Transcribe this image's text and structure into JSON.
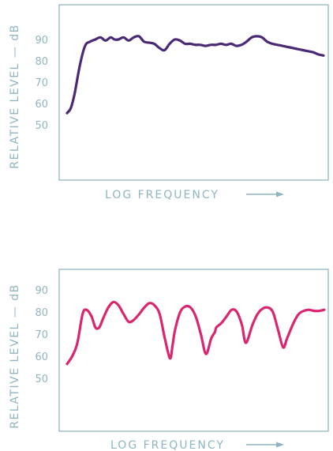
{
  "colors": {
    "axis": "#8fb6c0"
  },
  "chart_data": [
    {
      "type": "line",
      "ylabel": "RELATIVE LEVEL — dB",
      "xlabel": "LOG FREQUENCY",
      "yticks": [
        "50",
        "60",
        "70",
        "80",
        "90"
      ],
      "ylim": [
        50,
        90
      ],
      "series": [
        {
          "color": "#4a2a74",
          "x": [
            0.0,
            0.015,
            0.03,
            0.05,
            0.07,
            0.09,
            0.11,
            0.13,
            0.15,
            0.17,
            0.185,
            0.2,
            0.22,
            0.24,
            0.26,
            0.28,
            0.3,
            0.32,
            0.34,
            0.36,
            0.38,
            0.4,
            0.42,
            0.44,
            0.46,
            0.48,
            0.5,
            0.52,
            0.54,
            0.56,
            0.58,
            0.6,
            0.62,
            0.64,
            0.66,
            0.68,
            0.7,
            0.72,
            0.74,
            0.76,
            0.78,
            0.8,
            0.82,
            0.84,
            0.86,
            0.88,
            0.9,
            0.92,
            0.94,
            0.96,
            0.98,
            1.0
          ],
          "y": [
            55.5,
            58,
            65,
            78,
            87,
            89,
            90,
            91,
            89.5,
            91,
            90,
            90,
            91,
            89.5,
            91,
            91.5,
            89,
            88.5,
            88,
            86,
            85,
            88,
            90,
            89.5,
            88,
            88,
            87.5,
            87.5,
            87,
            87.5,
            87.5,
            88,
            87.5,
            88,
            87,
            87.5,
            89,
            91,
            91.5,
            91,
            89,
            88,
            87.5,
            87,
            86.5,
            86,
            85.5,
            85,
            84.5,
            84,
            83,
            82.5
          ]
        }
      ]
    },
    {
      "type": "line",
      "ylabel": "RELATIVE LEVEL — dB",
      "xlabel": "LOG FREQUENCY",
      "yticks": [
        "50",
        "60",
        "70",
        "80",
        "90"
      ],
      "ylim": [
        50,
        90
      ],
      "series": [
        {
          "color": "#d9266f",
          "x": [
            0.0,
            0.02,
            0.04,
            0.06,
            0.075,
            0.095,
            0.11,
            0.125,
            0.14,
            0.16,
            0.18,
            0.2,
            0.22,
            0.24,
            0.26,
            0.28,
            0.3,
            0.32,
            0.34,
            0.36,
            0.38,
            0.4,
            0.41,
            0.42,
            0.44,
            0.46,
            0.48,
            0.5,
            0.52,
            0.54,
            0.56,
            0.575,
            0.58,
            0.6,
            0.62,
            0.64,
            0.66,
            0.68,
            0.695,
            0.72,
            0.74,
            0.76,
            0.78,
            0.8,
            0.82,
            0.84,
            0.855,
            0.88,
            0.9,
            0.92,
            0.94,
            0.96,
            0.98,
            1.0
          ],
          "y": [
            56.5,
            60,
            66,
            79,
            81,
            78,
            73,
            73,
            77,
            82,
            84.5,
            83,
            79,
            75.5,
            76.5,
            79,
            82,
            84,
            83,
            79,
            68,
            59,
            65,
            72,
            80,
            82.5,
            82,
            78,
            70,
            61,
            68,
            71,
            73,
            75,
            78,
            81,
            80,
            74,
            66,
            74,
            79,
            81.5,
            82,
            80,
            72,
            64,
            68,
            75,
            79,
            80.5,
            81,
            80.5,
            80.5,
            81
          ]
        }
      ]
    }
  ]
}
